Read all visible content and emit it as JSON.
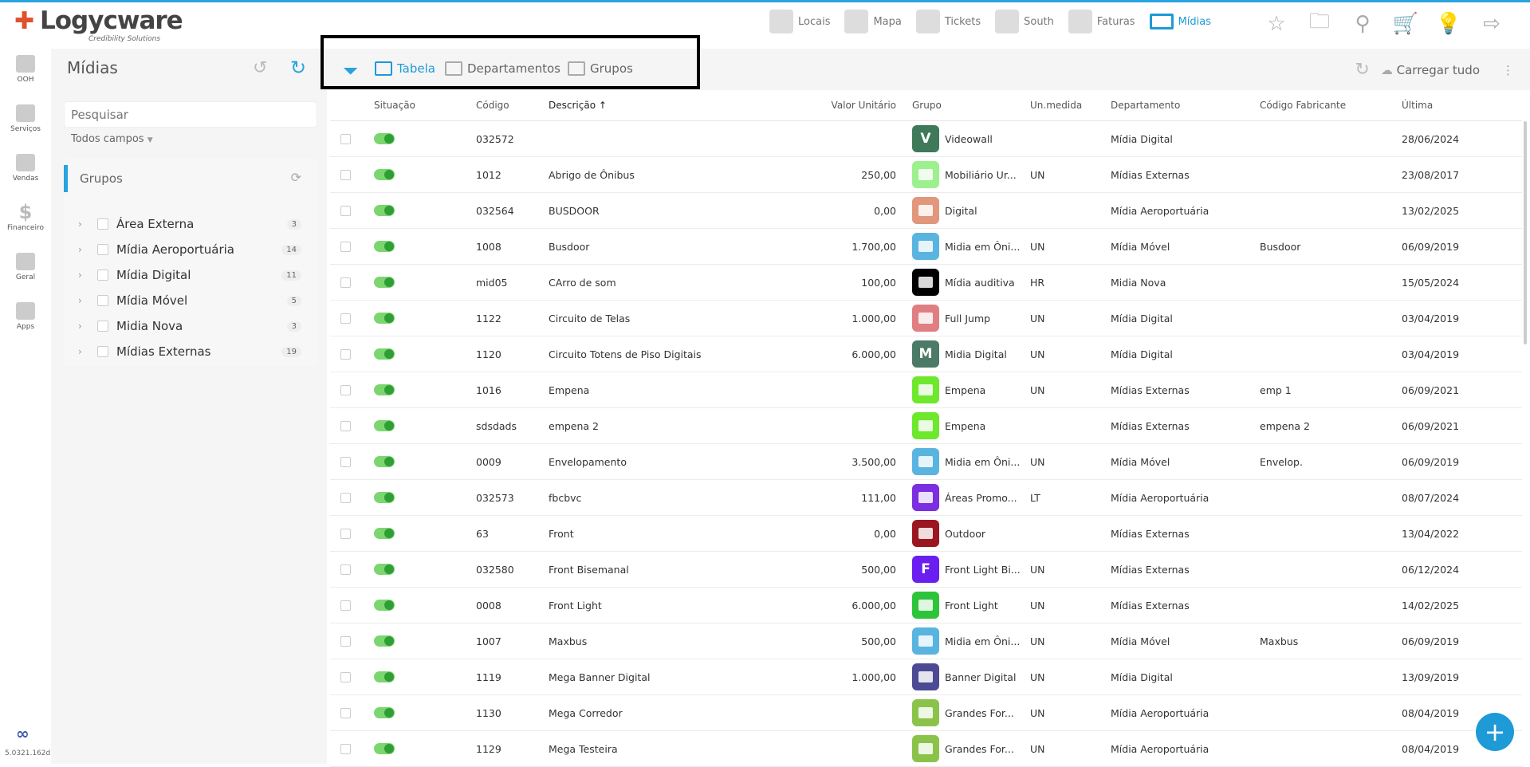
{
  "brand": {
    "name": "Logycware",
    "tagline": "Credibility Solutions"
  },
  "topnav": [
    {
      "label": "Locais"
    },
    {
      "label": "Mapa"
    },
    {
      "label": "Tickets"
    },
    {
      "label": "South"
    },
    {
      "label": "Faturas"
    },
    {
      "label": "Mídias",
      "active": true
    }
  ],
  "topicons": [
    "star-icon",
    "folder-icon",
    "user-search-icon",
    "cart-icon",
    "idea-icon",
    "logout-icon"
  ],
  "rail": [
    {
      "label": "OOH"
    },
    {
      "label": "Serviços"
    },
    {
      "label": "Vendas"
    },
    {
      "label": "Financeiro"
    },
    {
      "label": "Geral"
    },
    {
      "label": "Apps"
    }
  ],
  "version": "5.0321.162d",
  "left": {
    "title": "Mídias",
    "search_placeholder": "Pesquisar",
    "field_select": "Todos campos",
    "groups_title": "Grupos",
    "groups": [
      {
        "label": "Área Externa",
        "count": "3"
      },
      {
        "label": "Mídia Aeroportuária",
        "count": "14"
      },
      {
        "label": "Mídia Digital",
        "count": "11"
      },
      {
        "label": "Mídia Móvel",
        "count": "5"
      },
      {
        "label": "Midia Nova",
        "count": "3"
      },
      {
        "label": "Mídias Externas",
        "count": "19"
      }
    ]
  },
  "toolbar": {
    "tabs": [
      {
        "label": "Tabela",
        "active": true
      },
      {
        "label": "Departamentos"
      },
      {
        "label": "Grupos"
      }
    ],
    "load_all": "Carregar tudo"
  },
  "columns": {
    "situacao": "Situação",
    "codigo": "Código",
    "descricao": "Descrição ↑",
    "valor": "Valor Unitário",
    "grupo": "Grupo",
    "un": "Un.medida",
    "dept": "Departamento",
    "fab": "Código Fabricante",
    "ultima": "Última"
  },
  "rows": [
    {
      "codigo": "032572",
      "descricao": "",
      "valor": "",
      "grupo": "Videowall",
      "icon": "V",
      "color": "#3e7a5a",
      "un": "",
      "dept": "Mídia Digital",
      "fab": "",
      "ultima": "28/06/2024"
    },
    {
      "codigo": "1012",
      "descricao": "Abrigo de Ônibus",
      "valor": "250,00",
      "grupo": "Mobiliário Ur...",
      "icon": "",
      "color": "#9cf08e",
      "un": "UN",
      "dept": "Mídias Externas",
      "fab": "",
      "ultima": "23/08/2017"
    },
    {
      "codigo": "032564",
      "descricao": "BUSDOOR",
      "valor": "0,00",
      "grupo": "Digital",
      "icon": "",
      "color": "#e0977c",
      "un": "",
      "dept": "Mídia Aeroportuária",
      "fab": "",
      "ultima": "13/02/2025"
    },
    {
      "codigo": "1008",
      "descricao": "Busdoor",
      "valor": "1.700,00",
      "grupo": "Midia em Ôni...",
      "icon": "",
      "color": "#5ab4e0",
      "un": "UN",
      "dept": "Mídia Móvel",
      "fab": "Busdoor",
      "ultima": "06/09/2019"
    },
    {
      "codigo": "mid05",
      "descricao": "CArro de som",
      "valor": "100,00",
      "grupo": "Mídia auditiva",
      "icon": "",
      "color": "#000000",
      "un": "HR",
      "dept": "Midia Nova",
      "fab": "",
      "ultima": "15/05/2024"
    },
    {
      "codigo": "1122",
      "descricao": "Circuito de Telas",
      "valor": "1.000,00",
      "grupo": "Full Jump",
      "icon": "",
      "color": "#e07f82",
      "un": "UN",
      "dept": "Mídia Digital",
      "fab": "",
      "ultima": "03/04/2019"
    },
    {
      "codigo": "1120",
      "descricao": "Circuito Totens de Piso Digitais",
      "valor": "6.000,00",
      "grupo": "Midia Digital",
      "icon": "M",
      "color": "#4b7a66",
      "un": "UN",
      "dept": "Mídia Digital",
      "fab": "",
      "ultima": "03/04/2019"
    },
    {
      "codigo": "1016",
      "descricao": "Empena",
      "valor": "",
      "grupo": "Empena",
      "icon": "",
      "color": "#6ee82c",
      "un": "UN",
      "dept": "Mídias Externas",
      "fab": "emp 1",
      "ultima": "06/09/2021"
    },
    {
      "codigo": "sdsdads",
      "descricao": "empena 2",
      "valor": "",
      "grupo": "Empena",
      "icon": "",
      "color": "#6ee82c",
      "un": "",
      "dept": "Mídias Externas",
      "fab": "empena 2",
      "ultima": "06/09/2021"
    },
    {
      "codigo": "0009",
      "descricao": "Envelopamento",
      "valor": "3.500,00",
      "grupo": "Midia em Ôni...",
      "icon": "",
      "color": "#5ab4e0",
      "un": "UN",
      "dept": "Mídia Móvel",
      "fab": "Envelop.",
      "ultima": "06/09/2019"
    },
    {
      "codigo": "032573",
      "descricao": "fbcbvc",
      "valor": "111,00",
      "grupo": "Áreas Promo...",
      "icon": "",
      "color": "#7b2fe0",
      "un": "LT",
      "dept": "Mídia Aeroportuária",
      "fab": "",
      "ultima": "08/07/2024"
    },
    {
      "codigo": "63",
      "descricao": "Front",
      "valor": "0,00",
      "grupo": "Outdoor",
      "icon": "",
      "color": "#9a1620",
      "un": "",
      "dept": "Mídias Externas",
      "fab": "",
      "ultima": "13/04/2022"
    },
    {
      "codigo": "032580",
      "descricao": "Front Bisemanal",
      "valor": "500,00",
      "grupo": "Front Light Bi...",
      "icon": "F",
      "color": "#6a1ff0",
      "un": "UN",
      "dept": "Mídias Externas",
      "fab": "",
      "ultima": "06/12/2024"
    },
    {
      "codigo": "0008",
      "descricao": "Front Light",
      "valor": "6.000,00",
      "grupo": "Front Light",
      "icon": "",
      "color": "#2dc43a",
      "un": "UN",
      "dept": "Mídias Externas",
      "fab": "",
      "ultima": "14/02/2025"
    },
    {
      "codigo": "1007",
      "descricao": "Maxbus",
      "valor": "500,00",
      "grupo": "Midia em Ôni...",
      "icon": "",
      "color": "#5ab4e0",
      "un": "UN",
      "dept": "Mídia Móvel",
      "fab": "Maxbus",
      "ultima": "06/09/2019"
    },
    {
      "codigo": "1119",
      "descricao": "Mega Banner Digital",
      "valor": "1.000,00",
      "grupo": "Banner Digital",
      "icon": "",
      "color": "#4d4a94",
      "un": "UN",
      "dept": "Mídia Digital",
      "fab": "",
      "ultima": "13/09/2019"
    },
    {
      "codigo": "1130",
      "descricao": "Mega Corredor",
      "valor": "",
      "grupo": "Grandes For...",
      "icon": "",
      "color": "#8bc34a",
      "un": "UN",
      "dept": "Mídia Aeroportuária",
      "fab": "",
      "ultima": "08/04/2019"
    },
    {
      "codigo": "1129",
      "descricao": "Mega Testeira",
      "valor": "",
      "grupo": "Grandes For...",
      "icon": "",
      "color": "#8bc34a",
      "un": "UN",
      "dept": "Mídia Aeroportuária",
      "fab": "",
      "ultima": "08/04/2019"
    }
  ],
  "colors": {
    "accent": "#1e9ad6",
    "toggle_on": "#2e9e35"
  }
}
